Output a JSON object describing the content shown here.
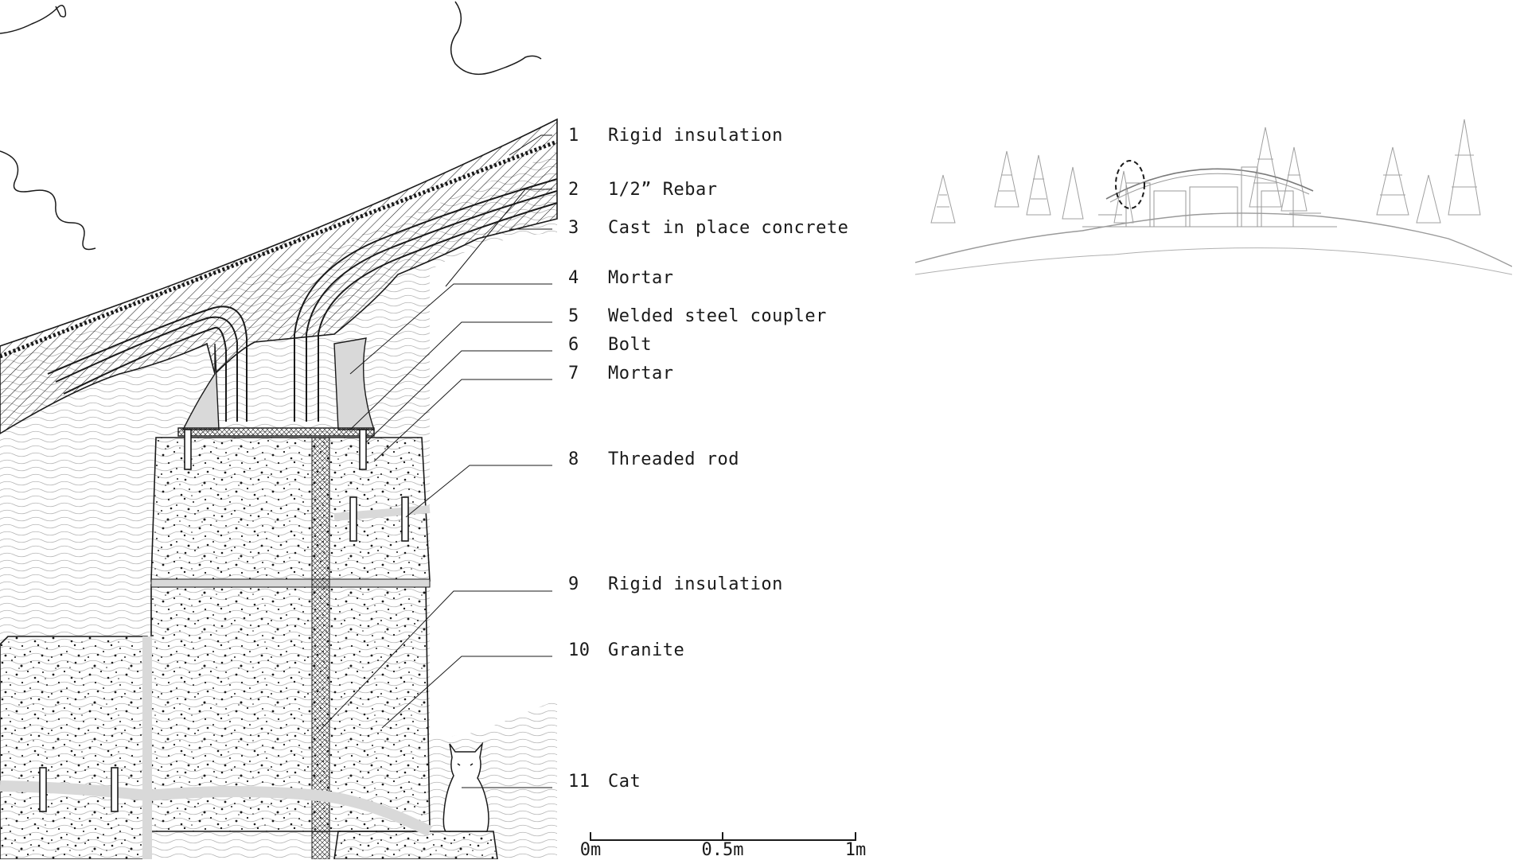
{
  "legend": [
    {
      "num": "1",
      "label": "Rigid insulation"
    },
    {
      "num": "2",
      "label": "1/2” Rebar"
    },
    {
      "num": "3",
      "label": "Cast in place concrete"
    },
    {
      "num": "4",
      "label": "Mortar"
    },
    {
      "num": "5",
      "label": "Welded steel coupler"
    },
    {
      "num": "6",
      "label": "Bolt"
    },
    {
      "num": "7",
      "label": "Mortar"
    },
    {
      "num": "8",
      "label": "Threaded rod"
    },
    {
      "num": "9",
      "label": "Rigid insulation"
    },
    {
      "num": "10",
      "label": "Granite"
    },
    {
      "num": "11",
      "label": "Cat"
    }
  ],
  "scale_bar": {
    "labels": [
      "0m",
      "0.5m",
      "1m"
    ]
  },
  "colors": {
    "line": "#1a1a1a",
    "mortar": "#d9d9d9",
    "context_line": "#9a9a9a",
    "background": "#ffffff"
  }
}
